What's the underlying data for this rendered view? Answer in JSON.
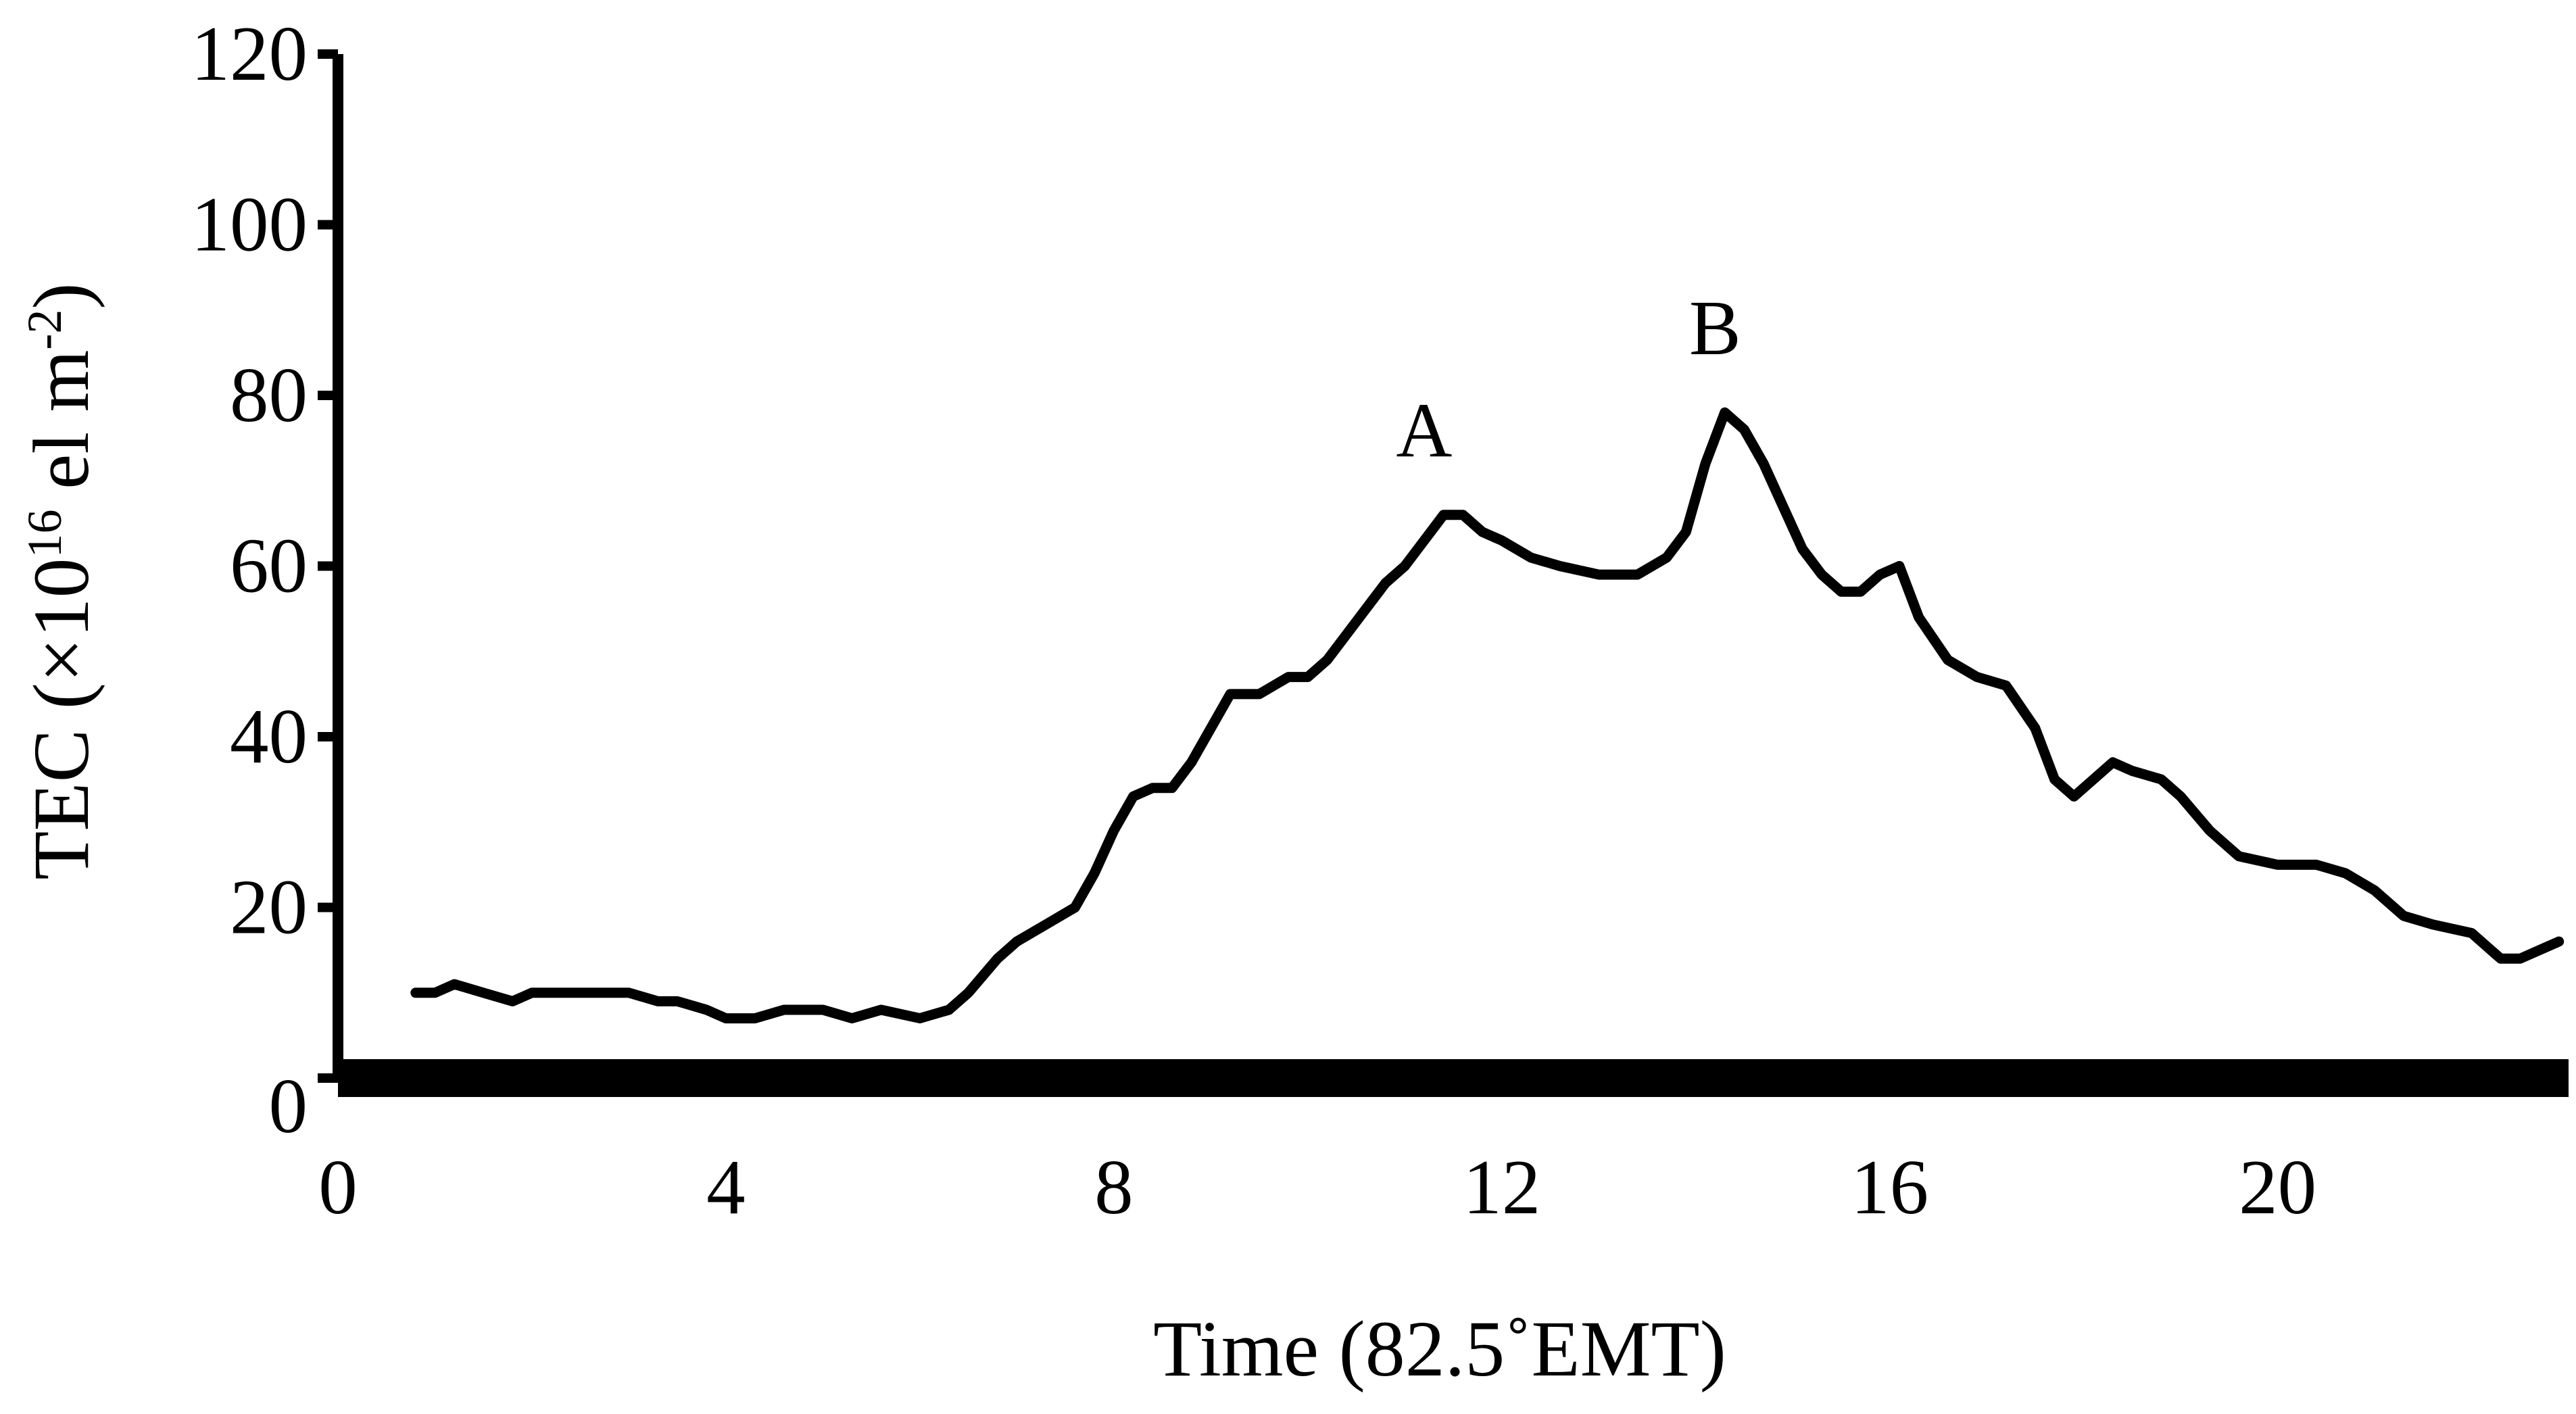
{
  "chart_data": {
    "type": "line",
    "xlabel": "Time (82.5˚EMT)",
    "ylabel": {
      "prefix": "TEC (×10",
      "exp1": "16",
      "middle": " el m",
      "exp2": "-2",
      "suffix": ")"
    },
    "xlim": [
      0,
      23
    ],
    "ylim": [
      0,
      120
    ],
    "x_ticks": [
      {
        "value": 0,
        "label": "0"
      },
      {
        "value": 4,
        "label": "4"
      },
      {
        "value": 8,
        "label": "8"
      },
      {
        "value": 12,
        "label": "12"
      },
      {
        "value": 16,
        "label": "16"
      },
      {
        "value": 20,
        "label": "20"
      }
    ],
    "y_ticks": [
      {
        "value": 0,
        "label": "0"
      },
      {
        "value": 20,
        "label": "20"
      },
      {
        "value": 40,
        "label": "40"
      },
      {
        "value": 60,
        "label": "60"
      },
      {
        "value": 80,
        "label": "80"
      },
      {
        "value": 100,
        "label": "100"
      },
      {
        "value": 120,
        "label": "120"
      }
    ],
    "annotations": [
      {
        "label": "A",
        "x": 11.2,
        "y": 76
      },
      {
        "label": "B",
        "x": 14.2,
        "y": 88
      }
    ],
    "series": [
      {
        "x": [
          0.8,
          1.0,
          1.2,
          1.5,
          1.8,
          2.0,
          2.3,
          2.6,
          3.0,
          3.3,
          3.5,
          3.8,
          4.0,
          4.3,
          4.6,
          5.0,
          5.3,
          5.6,
          6.0,
          6.3,
          6.5,
          6.8,
          7.0,
          7.3,
          7.6,
          7.8,
          8.0,
          8.2,
          8.4,
          8.6,
          8.8,
          9.0,
          9.2,
          9.5,
          9.8,
          10.0,
          10.2,
          10.4,
          10.6,
          10.8,
          11.0,
          11.2,
          11.4,
          11.6,
          11.8,
          12.0,
          12.3,
          12.6,
          13.0,
          13.4,
          13.7,
          13.9,
          14.1,
          14.3,
          14.5,
          14.7,
          14.9,
          15.1,
          15.3,
          15.5,
          15.7,
          15.9,
          16.1,
          16.3,
          16.6,
          16.9,
          17.2,
          17.5,
          17.7,
          17.9,
          18.1,
          18.3,
          18.5,
          18.8,
          19.0,
          19.3,
          19.6,
          20.0,
          20.4,
          20.7,
          21.0,
          21.3,
          21.6,
          22.0,
          22.3,
          22.5,
          22.7,
          22.9
        ],
        "y": [
          10,
          10,
          11,
          10,
          9,
          10,
          10,
          10,
          10,
          9,
          9,
          8,
          7,
          7,
          8,
          8,
          7,
          8,
          7,
          8,
          10,
          14,
          16,
          18,
          20,
          24,
          29,
          33,
          34,
          34,
          37,
          41,
          45,
          45,
          47,
          47,
          49,
          52,
          55,
          58,
          60,
          63,
          66,
          66,
          64,
          63,
          61,
          60,
          59,
          59,
          61,
          64,
          72,
          78,
          76,
          72,
          67,
          62,
          59,
          57,
          57,
          59,
          60,
          54,
          49,
          47,
          46,
          41,
          35,
          33,
          35,
          37,
          36,
          35,
          33,
          29,
          26,
          25,
          25,
          24,
          22,
          19,
          18,
          17,
          14,
          14,
          15,
          16
        ]
      }
    ]
  }
}
